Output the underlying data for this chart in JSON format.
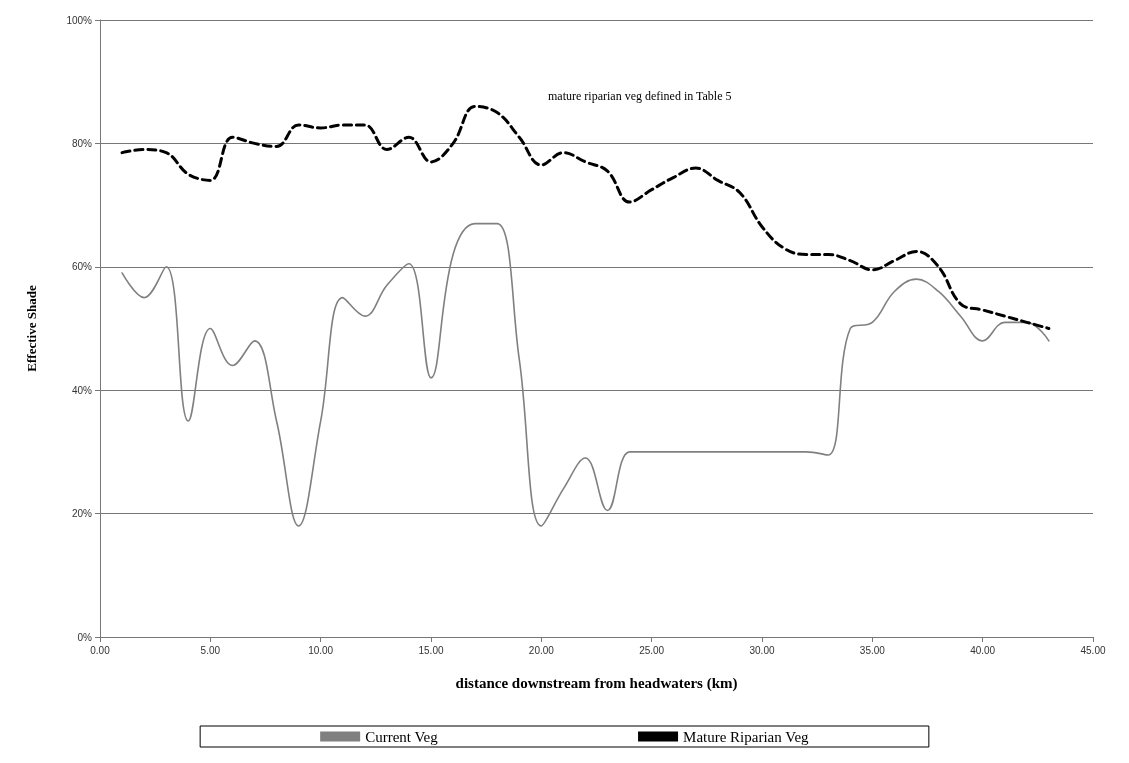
{
  "chart_data": {
    "type": "line",
    "xlabel": "distance downstream from headwaters (km)",
    "ylabel": "Effective Shade",
    "annotations": [
      "mature riparian veg defined in Table 5"
    ],
    "xlim": [
      0,
      45
    ],
    "xticks": [
      {
        "value": 0,
        "label": "0.00"
      },
      {
        "value": 5,
        "label": "5.00"
      },
      {
        "value": 10,
        "label": "10.00"
      },
      {
        "value": 15,
        "label": "15.00"
      },
      {
        "value": 20,
        "label": "20.00"
      },
      {
        "value": 25,
        "label": "25.00"
      },
      {
        "value": 30,
        "label": "30.00"
      },
      {
        "value": 35,
        "label": "35.00"
      },
      {
        "value": 40,
        "label": "40.00"
      },
      {
        "value": 45,
        "label": "45.00"
      }
    ],
    "ylim": [
      0,
      100
    ],
    "yticks": [
      {
        "value": 0,
        "label": "0%"
      },
      {
        "value": 20,
        "label": "20%"
      },
      {
        "value": 40,
        "label": "40%"
      },
      {
        "value": 60,
        "label": "60%"
      },
      {
        "value": 80,
        "label": "80%"
      },
      {
        "value": 100,
        "label": "100%"
      }
    ],
    "grid": "y",
    "legend": "bottom",
    "marker": "none",
    "x": [
      1,
      2,
      3,
      4,
      5,
      6,
      7,
      8,
      9,
      10,
      11,
      12,
      13,
      14,
      15,
      16,
      17,
      18,
      19,
      20,
      21,
      22,
      23,
      24,
      25,
      26,
      27,
      28,
      29,
      30,
      31,
      32,
      33,
      34,
      35,
      36,
      37,
      38,
      39,
      40,
      41,
      42,
      43
    ],
    "series": [
      {
        "name": "Current Veg",
        "color": "#808080",
        "line_style": "solid",
        "values": [
          59,
          55,
          60,
          35,
          50,
          44,
          48,
          35,
          18,
          35,
          55,
          52,
          57,
          60.5,
          42,
          62,
          67,
          67,
          45,
          18,
          24,
          29,
          20.5,
          30,
          30,
          30,
          30,
          30,
          30,
          30,
          30,
          30,
          29.5,
          50,
          51,
          56,
          58,
          56,
          52,
          48,
          51,
          51,
          48
        ]
      },
      {
        "name": "Mature Riparian Veg",
        "color": "#000000",
        "line_style": "dashed",
        "values": [
          78.5,
          79,
          78.5,
          75,
          74,
          81,
          80,
          79.5,
          83,
          82.5,
          83,
          83,
          79,
          81,
          77,
          80,
          86,
          85,
          81,
          76.5,
          78.5,
          77,
          75.5,
          70.5,
          72.5,
          74.5,
          76,
          74,
          72,
          66.5,
          63,
          62,
          62,
          61,
          59.5,
          61,
          62.5,
          60,
          54,
          53,
          52,
          51,
          50
        ]
      }
    ]
  }
}
